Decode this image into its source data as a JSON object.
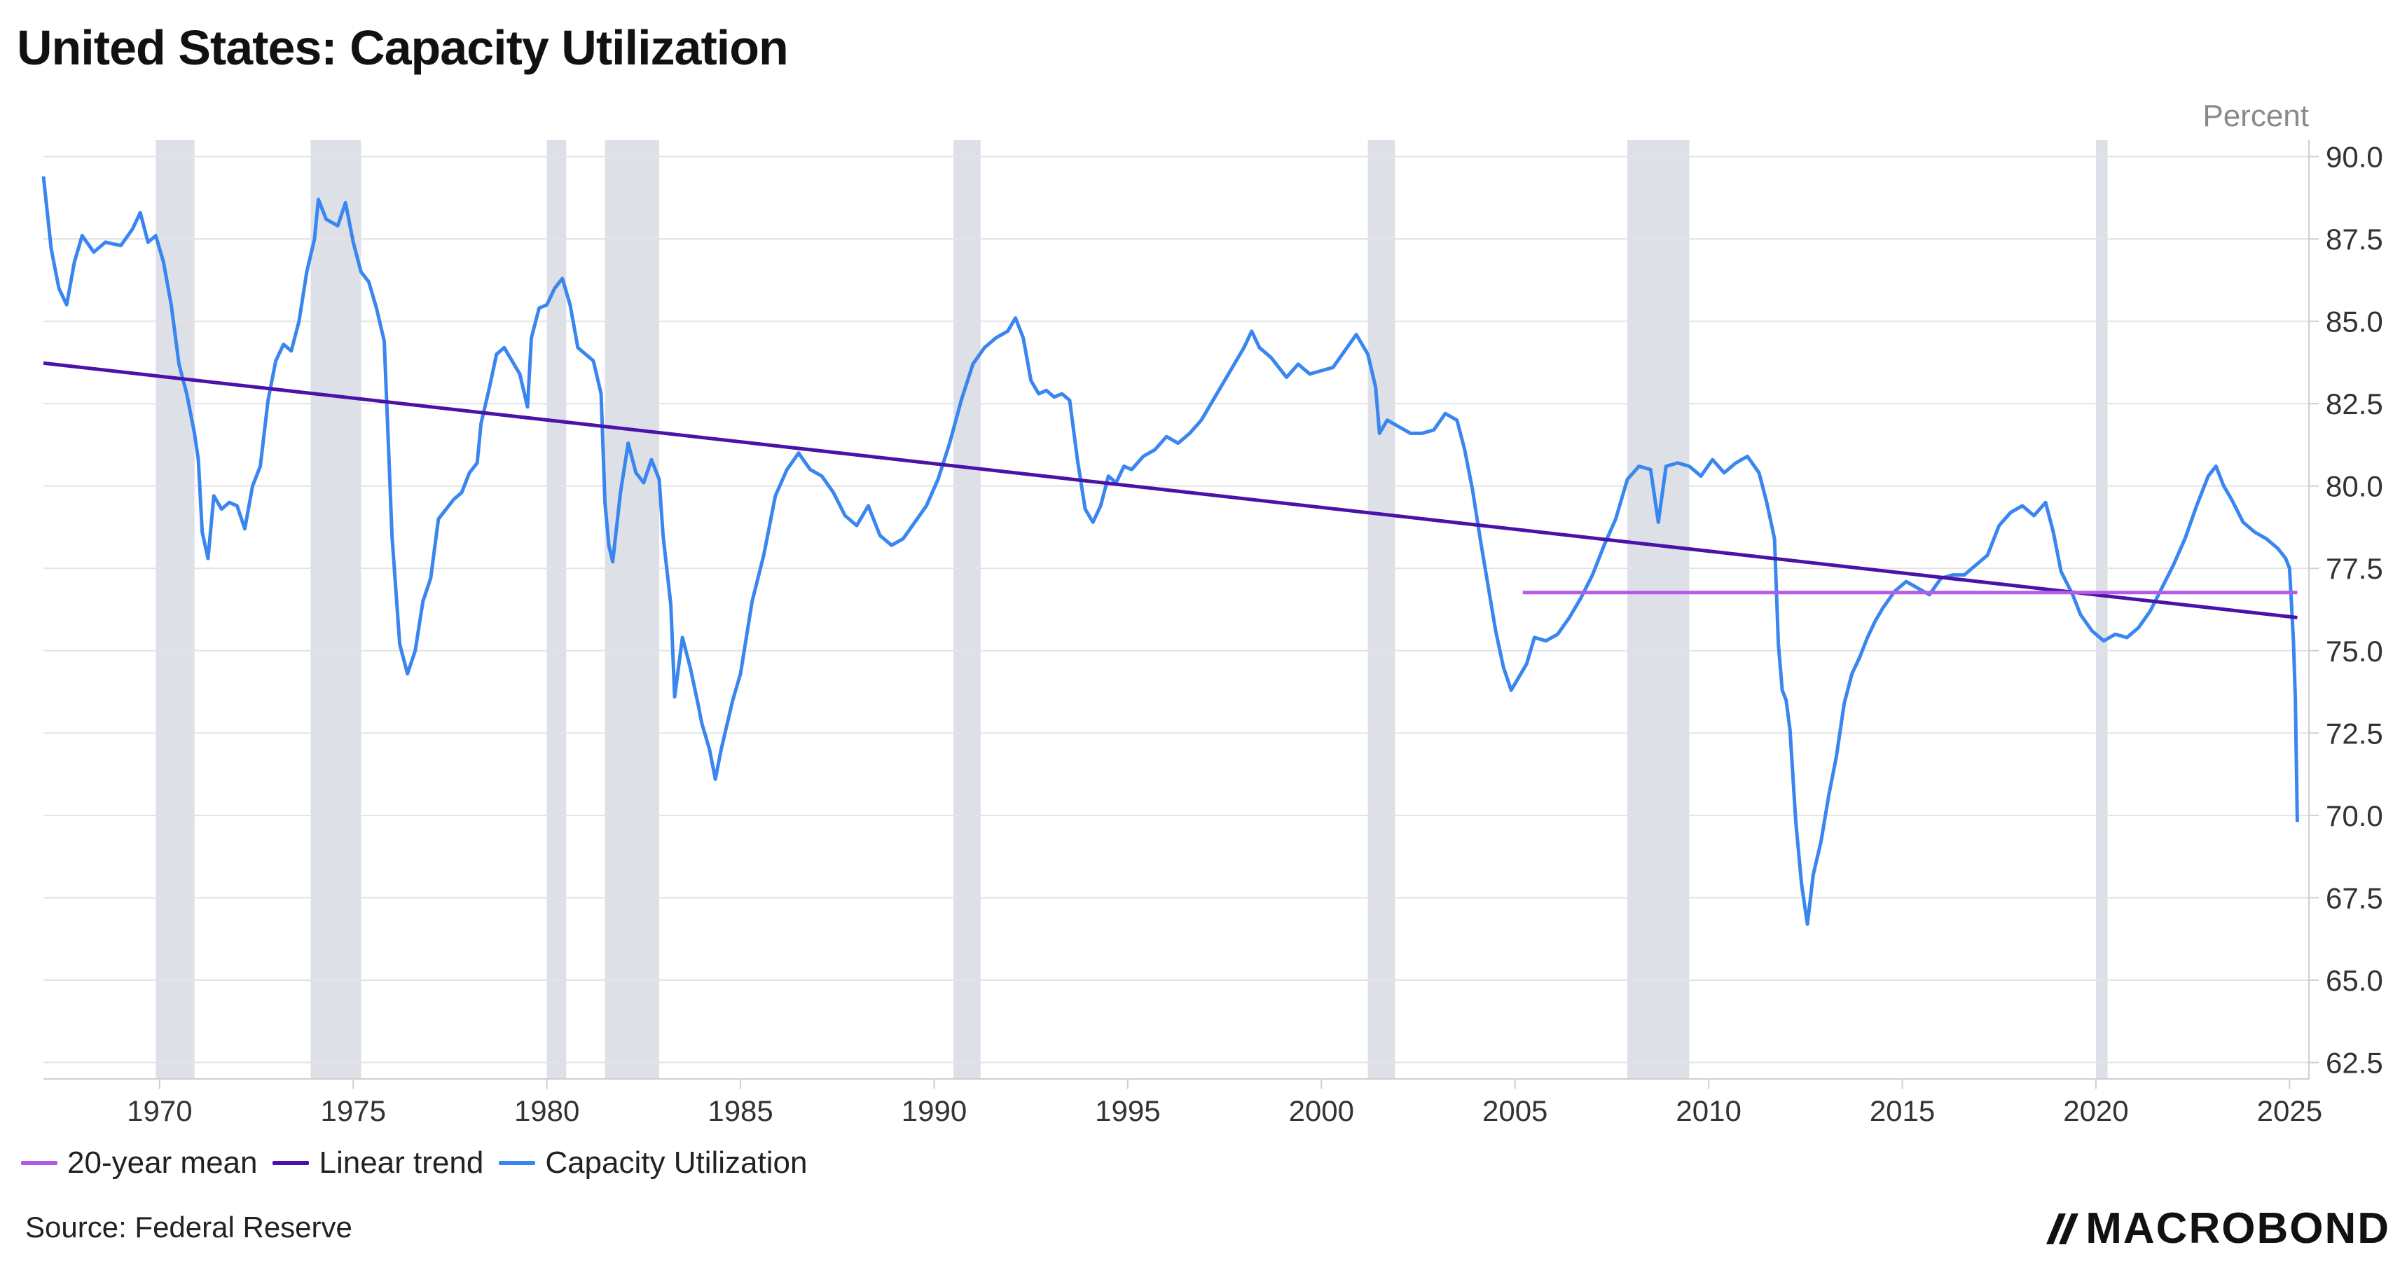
{
  "title": "United States: Capacity Utilization",
  "source": "Source: Federal Reserve",
  "logo_text": "MACROBOND",
  "colors": {
    "capacity": "#3a86f0",
    "trend": "#4b12a8",
    "mean": "#b45ae6",
    "recession": "#dde0e7",
    "grid": "#e3e3e3",
    "axis_text": "#333333"
  },
  "legend": [
    {
      "name": "20-year mean",
      "color": "#b45ae6"
    },
    {
      "name": "Linear trend",
      "color": "#4b12a8"
    },
    {
      "name": "Capacity Utilization",
      "color": "#3a86f0"
    }
  ],
  "chart_data": {
    "type": "line",
    "yunit": "Percent",
    "xlim": [
      1967.0,
      2025.5
    ],
    "ylim": [
      62.0,
      90.5
    ],
    "x_ticks": [
      "1970",
      "1975",
      "1980",
      "1985",
      "1990",
      "1995",
      "2000",
      "2005",
      "2010",
      "2015",
      "2020",
      "2025"
    ],
    "y_ticks": [
      "62.5",
      "65.0",
      "67.5",
      "70.0",
      "72.5",
      "75.0",
      "77.5",
      "80.0",
      "82.5",
      "85.0",
      "87.5",
      "90.0"
    ],
    "recessions": [
      [
        1969.9,
        1970.9
      ],
      [
        1973.9,
        1975.2
      ],
      [
        1980.0,
        1980.5
      ],
      [
        1981.5,
        1982.9
      ],
      [
        1990.5,
        1991.2
      ],
      [
        2001.2,
        2001.9
      ],
      [
        2007.9,
        2009.5
      ],
      [
        2020.0,
        2020.3
      ]
    ],
    "series": [
      {
        "name": "Capacity Utilization",
        "points": [
          [
            1967.0,
            89.4
          ],
          [
            1967.2,
            87.2
          ],
          [
            1967.4,
            86.0
          ],
          [
            1967.6,
            85.5
          ],
          [
            1967.8,
            86.8
          ],
          [
            1968.0,
            87.6
          ],
          [
            1968.3,
            87.1
          ],
          [
            1968.6,
            87.4
          ],
          [
            1969.0,
            87.3
          ],
          [
            1969.3,
            87.8
          ],
          [
            1969.5,
            88.3
          ],
          [
            1969.7,
            87.4
          ],
          [
            1969.9,
            87.6
          ],
          [
            1970.1,
            86.8
          ],
          [
            1970.3,
            85.5
          ],
          [
            1970.5,
            83.7
          ],
          [
            1970.7,
            82.8
          ],
          [
            1970.9,
            81.6
          ],
          [
            1971.0,
            80.8
          ],
          [
            1971.1,
            78.6
          ],
          [
            1971.25,
            77.8
          ],
          [
            1971.4,
            79.7
          ],
          [
            1971.6,
            79.3
          ],
          [
            1971.8,
            79.5
          ],
          [
            1972.0,
            79.4
          ],
          [
            1972.2,
            78.7
          ],
          [
            1972.4,
            80.0
          ],
          [
            1972.6,
            80.6
          ],
          [
            1972.8,
            82.6
          ],
          [
            1973.0,
            83.8
          ],
          [
            1973.2,
            84.3
          ],
          [
            1973.4,
            84.1
          ],
          [
            1973.6,
            85.0
          ],
          [
            1973.8,
            86.5
          ],
          [
            1974.0,
            87.5
          ],
          [
            1974.1,
            88.7
          ],
          [
            1974.3,
            88.1
          ],
          [
            1974.6,
            87.9
          ],
          [
            1974.8,
            88.6
          ],
          [
            1975.0,
            87.4
          ],
          [
            1975.2,
            86.5
          ],
          [
            1975.4,
            86.2
          ],
          [
            1975.6,
            85.4
          ],
          [
            1975.8,
            84.4
          ],
          [
            1975.9,
            81.5
          ],
          [
            1976.0,
            78.5
          ],
          [
            1976.2,
            75.2
          ],
          [
            1976.4,
            74.3
          ],
          [
            1976.6,
            75.0
          ],
          [
            1976.8,
            76.5
          ],
          [
            1977.0,
            77.2
          ],
          [
            1977.2,
            79.0
          ],
          [
            1977.4,
            79.3
          ],
          [
            1977.6,
            79.6
          ],
          [
            1977.8,
            79.8
          ],
          [
            1978.0,
            80.4
          ],
          [
            1978.2,
            80.7
          ],
          [
            1978.3,
            81.9
          ],
          [
            1978.5,
            82.9
          ],
          [
            1978.7,
            84.0
          ],
          [
            1978.9,
            84.2
          ],
          [
            1979.1,
            83.8
          ],
          [
            1979.3,
            83.4
          ],
          [
            1979.5,
            82.4
          ],
          [
            1979.6,
            84.5
          ],
          [
            1979.8,
            85.4
          ],
          [
            1980.0,
            85.5
          ],
          [
            1980.2,
            86.0
          ],
          [
            1980.4,
            86.3
          ],
          [
            1980.6,
            85.5
          ],
          [
            1980.8,
            84.2
          ],
          [
            1981.0,
            84.0
          ],
          [
            1981.2,
            83.8
          ],
          [
            1981.4,
            82.8
          ],
          [
            1981.5,
            79.5
          ],
          [
            1981.6,
            78.2
          ],
          [
            1981.7,
            77.7
          ],
          [
            1981.9,
            79.8
          ],
          [
            1982.1,
            81.3
          ],
          [
            1982.3,
            80.4
          ],
          [
            1982.5,
            80.1
          ],
          [
            1982.7,
            80.8
          ],
          [
            1982.9,
            80.2
          ],
          [
            1983.0,
            78.5
          ],
          [
            1983.2,
            76.4
          ],
          [
            1983.3,
            73.6
          ],
          [
            1983.5,
            75.4
          ],
          [
            1983.7,
            74.5
          ],
          [
            1983.9,
            73.4
          ],
          [
            1984.0,
            72.8
          ],
          [
            1984.2,
            72.0
          ],
          [
            1984.35,
            71.1
          ],
          [
            1984.5,
            72.0
          ],
          [
            1984.8,
            73.5
          ],
          [
            1985.0,
            74.3
          ],
          [
            1985.3,
            76.5
          ],
          [
            1985.6,
            77.9
          ],
          [
            1985.9,
            79.7
          ],
          [
            1986.2,
            80.5
          ],
          [
            1986.5,
            81.0
          ],
          [
            1986.8,
            80.5
          ],
          [
            1987.1,
            80.3
          ],
          [
            1987.4,
            79.8
          ],
          [
            1987.7,
            79.1
          ],
          [
            1988.0,
            78.8
          ],
          [
            1988.3,
            79.4
          ],
          [
            1988.6,
            78.5
          ],
          [
            1988.9,
            78.2
          ],
          [
            1989.2,
            78.4
          ],
          [
            1989.5,
            78.9
          ],
          [
            1989.8,
            79.4
          ],
          [
            1990.1,
            80.2
          ],
          [
            1990.4,
            81.3
          ],
          [
            1990.7,
            82.6
          ],
          [
            1991.0,
            83.7
          ],
          [
            1991.3,
            84.2
          ],
          [
            1991.6,
            84.5
          ],
          [
            1991.9,
            84.7
          ],
          [
            1992.1,
            85.1
          ],
          [
            1992.3,
            84.5
          ],
          [
            1992.5,
            83.2
          ],
          [
            1992.7,
            82.8
          ],
          [
            1992.9,
            82.9
          ],
          [
            1993.1,
            82.7
          ],
          [
            1993.3,
            82.8
          ],
          [
            1993.5,
            82.6
          ],
          [
            1993.7,
            80.8
          ],
          [
            1993.9,
            79.3
          ],
          [
            1994.1,
            78.9
          ],
          [
            1994.3,
            79.4
          ],
          [
            1994.5,
            80.3
          ],
          [
            1994.7,
            80.1
          ],
          [
            1994.9,
            80.6
          ],
          [
            1995.1,
            80.5
          ],
          [
            1995.4,
            80.9
          ],
          [
            1995.7,
            81.1
          ],
          [
            1996.0,
            81.5
          ],
          [
            1996.3,
            81.3
          ],
          [
            1996.6,
            81.6
          ],
          [
            1996.9,
            82.0
          ],
          [
            1997.2,
            82.6
          ],
          [
            1997.5,
            83.2
          ],
          [
            1997.8,
            83.8
          ],
          [
            1998.0,
            84.2
          ],
          [
            1998.2,
            84.7
          ],
          [
            1998.4,
            84.2
          ],
          [
            1998.7,
            83.9
          ],
          [
            1998.9,
            83.6
          ],
          [
            1999.1,
            83.3
          ],
          [
            1999.4,
            83.7
          ],
          [
            1999.7,
            83.4
          ],
          [
            2000.0,
            83.5
          ],
          [
            2000.3,
            83.6
          ],
          [
            2000.6,
            84.1
          ],
          [
            2000.9,
            84.6
          ],
          [
            2001.2,
            84.0
          ],
          [
            2001.4,
            83.0
          ],
          [
            2001.5,
            81.6
          ],
          [
            2001.7,
            82.0
          ],
          [
            2002.0,
            81.8
          ],
          [
            2002.3,
            81.6
          ],
          [
            2002.6,
            81.6
          ],
          [
            2002.9,
            81.7
          ],
          [
            2003.2,
            82.2
          ],
          [
            2003.5,
            82.0
          ],
          [
            2003.7,
            81.1
          ],
          [
            2003.9,
            79.9
          ],
          [
            2004.1,
            78.4
          ],
          [
            2004.3,
            77.0
          ],
          [
            2004.5,
            75.6
          ],
          [
            2004.7,
            74.5
          ],
          [
            2004.9,
            73.8
          ],
          [
            2005.1,
            74.2
          ],
          [
            2005.3,
            74.6
          ],
          [
            2005.5,
            75.4
          ],
          [
            2005.8,
            75.3
          ],
          [
            2006.1,
            75.5
          ],
          [
            2006.4,
            76.0
          ],
          [
            2006.7,
            76.6
          ],
          [
            2007.0,
            77.3
          ],
          [
            2007.3,
            78.2
          ],
          [
            2007.6,
            79.0
          ],
          [
            2007.9,
            80.2
          ],
          [
            2008.2,
            80.6
          ],
          [
            2008.5,
            80.5
          ],
          [
            2008.7,
            78.9
          ],
          [
            2008.9,
            80.6
          ],
          [
            2009.2,
            80.7
          ],
          [
            2009.5,
            80.6
          ],
          [
            2009.8,
            80.3
          ],
          [
            2010.1,
            80.8
          ],
          [
            2010.4,
            80.4
          ],
          [
            2010.7,
            80.7
          ],
          [
            2011.0,
            80.9
          ],
          [
            2011.3,
            80.4
          ],
          [
            2011.5,
            79.5
          ],
          [
            2011.7,
            78.4
          ],
          [
            2011.8,
            75.2
          ],
          [
            2011.9,
            73.8
          ],
          [
            2012.0,
            73.5
          ],
          [
            2012.1,
            72.6
          ],
          [
            2012.25,
            69.8
          ],
          [
            2012.4,
            67.9
          ],
          [
            2012.55,
            66.7
          ],
          [
            2012.7,
            68.2
          ],
          [
            2012.9,
            69.2
          ],
          [
            2013.1,
            70.6
          ],
          [
            2013.3,
            71.8
          ],
          [
            2013.5,
            73.4
          ],
          [
            2013.7,
            74.3
          ],
          [
            2013.9,
            74.8
          ],
          [
            2014.1,
            75.4
          ],
          [
            2014.3,
            75.9
          ],
          [
            2014.5,
            76.3
          ],
          [
            2014.8,
            76.8
          ],
          [
            2015.1,
            77.1
          ],
          [
            2015.4,
            76.9
          ],
          [
            2015.7,
            76.7
          ],
          [
            2016.0,
            77.2
          ],
          [
            2016.3,
            77.3
          ],
          [
            2016.6,
            77.3
          ],
          [
            2016.9,
            77.6
          ],
          [
            2017.2,
            77.9
          ],
          [
            2017.5,
            78.8
          ],
          [
            2017.8,
            79.2
          ],
          [
            2018.1,
            79.4
          ],
          [
            2018.4,
            79.1
          ],
          [
            2018.7,
            79.5
          ],
          [
            2018.9,
            78.6
          ],
          [
            2019.1,
            77.4
          ],
          [
            2019.4,
            76.7
          ],
          [
            2019.6,
            76.1
          ],
          [
            2019.9,
            75.6
          ],
          [
            2020.2,
            75.3
          ],
          [
            2020.5,
            75.5
          ],
          [
            2020.8,
            75.4
          ],
          [
            2021.1,
            75.7
          ],
          [
            2021.4,
            76.2
          ],
          [
            2021.7,
            76.9
          ],
          [
            2022.0,
            77.6
          ],
          [
            2022.3,
            78.4
          ],
          [
            2022.6,
            79.4
          ],
          [
            2022.9,
            80.3
          ],
          [
            2023.1,
            80.6
          ],
          [
            2023.3,
            80.0
          ],
          [
            2023.5,
            79.6
          ],
          [
            2023.8,
            78.9
          ],
          [
            2024.1,
            78.6
          ],
          [
            2024.4,
            78.4
          ],
          [
            2024.7,
            78.1
          ],
          [
            2024.9,
            77.8
          ],
          [
            2025.0,
            77.5
          ],
          [
            2025.1,
            75.3
          ],
          [
            2025.15,
            73.5
          ],
          [
            2025.2,
            69.8
          ]
        ]
      }
    ]
  }
}
